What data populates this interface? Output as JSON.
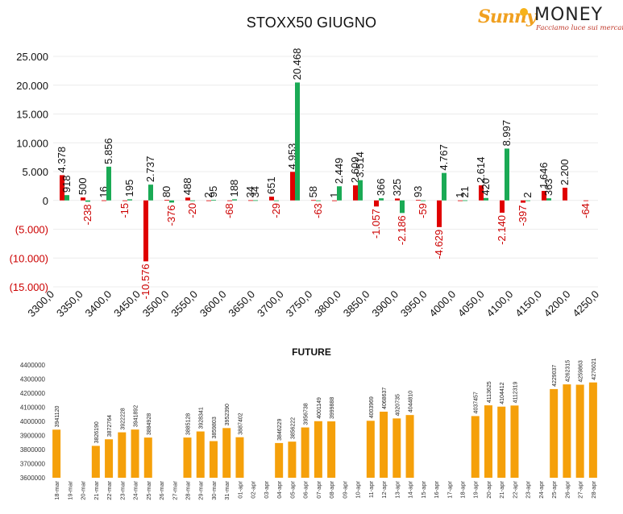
{
  "title": "STOXX50 GIUGNO",
  "logo": {
    "brand_left": "Sunny",
    "brand_right": "MONEY",
    "tagline": "Facciamo luce sui mercati"
  },
  "colors": {
    "positive": "#1aaa55",
    "negative": "#e00000",
    "negative_text": "#cc0000",
    "future_bar": "#f5a00a"
  },
  "chart_data": [
    {
      "type": "bar",
      "title": "STOXX50 GIUGNO",
      "ylim": [
        -15000,
        25000
      ],
      "yticks": [
        25000,
        20000,
        15000,
        10000,
        5000,
        0,
        -5000,
        -10000,
        -15000
      ],
      "ytick_labels": [
        "25.000",
        "20.000",
        "15.000",
        "10.000",
        "5.000",
        "0",
        "(5.000)",
        "(10.000)",
        "(15.000)"
      ],
      "grid": true,
      "xtick_labels": [
        "3300,0",
        "3350,0",
        "3400,0",
        "3450,0",
        "3500,0",
        "3550,0",
        "3600,0",
        "3650,0",
        "3700,0",
        "3750,0",
        "3800,0",
        "3850,0",
        "3900,0",
        "3950,0",
        "4000,0",
        "4050,0",
        "4100,0",
        "4150,0",
        "4200,0",
        "4250,0"
      ],
      "series": [
        {
          "color": "red",
          "values": [
            4378,
            500,
            16,
            -15,
            -10576,
            80,
            488,
            2,
            -68,
            34,
            651,
            4953,
            58,
            1,
            2609,
            -1057,
            325,
            93,
            -4629,
            1,
            2614,
            -2140,
            -397,
            1646,
            2200,
            -64
          ]
        },
        {
          "color": "green",
          "values": [
            918,
            -238,
            5856,
            195,
            2737,
            -376,
            -20,
            95,
            188,
            34,
            -29,
            20468,
            -63,
            2449,
            3514,
            366,
            -2186,
            -59,
            4767,
            21,
            420,
            8997,
            2,
            363
          ]
        }
      ],
      "data_labels_red": [
        "4.378",
        "500",
        "16",
        "-15",
        "-10.576",
        "80",
        "488",
        "2",
        "-68",
        "34",
        "651",
        "4.953",
        "58",
        "1",
        "2.609",
        "-1.057",
        "325",
        "93",
        "-4.629",
        "1",
        "2.614",
        "-2.140",
        "-397",
        "1.646",
        "2.200",
        "-64"
      ],
      "data_labels_green": [
        "918",
        "-238",
        "5.856",
        "195",
        "2.737",
        "-376",
        "-20",
        "95",
        "188",
        "34",
        "-29",
        "20.468",
        "-63",
        "2.449",
        "3.514",
        "366",
        "-2.186",
        "-59",
        "4.767",
        "21",
        "420",
        "8.997",
        "2",
        "363"
      ]
    },
    {
      "type": "bar",
      "title": "FUTURE",
      "ylim": [
        3600000,
        4400000
      ],
      "yticks": [
        4400000,
        4300000,
        4200000,
        4100000,
        4000000,
        3900000,
        3800000,
        3700000,
        3600000
      ],
      "ytick_labels": [
        "4400000",
        "4300000",
        "4200000",
        "4100000",
        "4000000",
        "3900000",
        "3800000",
        "3700000",
        "3600000"
      ],
      "categories": [
        "18-mar",
        "19-mar",
        "20-mar",
        "21-mar",
        "22-mar",
        "23-mar",
        "24-mar",
        "25-mar",
        "26-mar",
        "27-mar",
        "28-mar",
        "29-mar",
        "30-mar",
        "31-mar",
        "01-apr",
        "02-apr",
        "03-apr",
        "04-apr",
        "05-apr",
        "06-apr",
        "07-apr",
        "08-apr",
        "09-apr",
        "10-apr",
        "11-apr",
        "12-apr",
        "13-apr",
        "14-apr",
        "15-apr",
        "16-apr",
        "17-apr",
        "18-apr",
        "19-apr",
        "20-apr",
        "21-apr",
        "22-apr",
        "23-apr",
        "24-apr",
        "25-apr",
        "26-apr",
        "27-apr",
        "28-apr"
      ],
      "values": [
        3941120,
        null,
        null,
        3826190,
        3872764,
        3922228,
        3941892,
        3884928,
        null,
        null,
        3885128,
        3928341,
        3859803,
        3952390,
        3887402,
        null,
        null,
        3846229,
        3856222,
        3956738,
        4001149,
        3999888,
        null,
        null,
        4003969,
        4068637,
        4020735,
        4044810,
        null,
        null,
        null,
        null,
        4037457,
        4113625,
        4104412,
        4112319,
        null,
        null,
        4229037,
        4262315,
        4259863,
        4276021
      ]
    }
  ]
}
